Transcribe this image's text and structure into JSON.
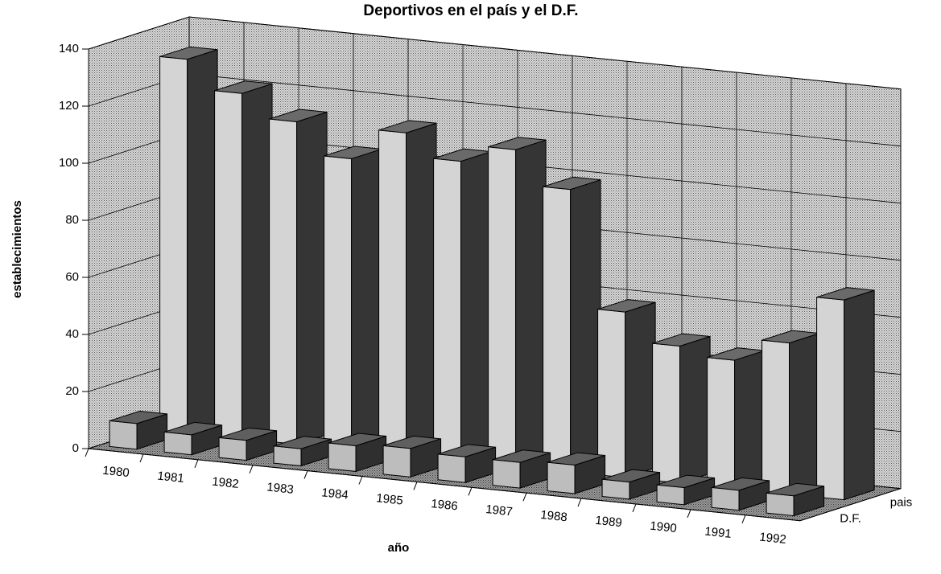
{
  "chart_data": {
    "type": "bar3d",
    "title": "Deportivos en el país y el D.F.",
    "x_label": "año",
    "y_label": "establecimientos",
    "categories": [
      "1980",
      "1981",
      "1982",
      "1983",
      "1984",
      "1985",
      "1986",
      "1987",
      "1988",
      "1989",
      "1990",
      "1991",
      "1992"
    ],
    "series": [
      {
        "name": "pais",
        "color": "#d4d4d4",
        "values": [
          131,
          121,
          113,
          102,
          113,
          105,
          111,
          99,
          58,
          48,
          45,
          53,
          70
        ]
      },
      {
        "name": "D.F.",
        "color": "#bdbdbd",
        "values": [
          9,
          7,
          7,
          6,
          9,
          10,
          9,
          9,
          10,
          6,
          6,
          7,
          7
        ]
      }
    ],
    "ylim": [
      0,
      140
    ],
    "yticks": [
      0,
      20,
      40,
      60,
      80,
      100,
      120,
      140
    ],
    "grid": true
  }
}
